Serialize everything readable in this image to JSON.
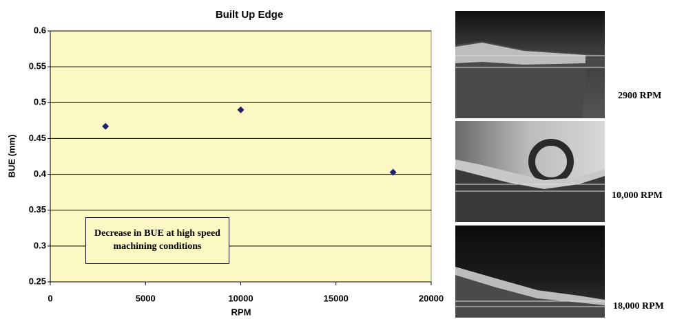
{
  "chart_data": {
    "type": "scatter",
    "title": "Built Up Edge",
    "x_label": "RPM",
    "y_label": "BUE (mm)",
    "x": [
      2900,
      10000,
      18000
    ],
    "values": [
      0.467,
      0.49,
      0.403
    ],
    "color": "#1f1f6e",
    "xlim": [
      0,
      20000
    ],
    "xticks": [
      0,
      5000,
      10000,
      15000,
      20000
    ],
    "ylim": [
      0.25,
      0.6
    ],
    "yticks": [
      0.25,
      0.3,
      0.35,
      0.4,
      0.45,
      0.5,
      0.55,
      0.6
    ],
    "grid": true,
    "annotation": "Decrease in BUE at high speed machining conditions"
  },
  "images": [
    {
      "label": "2900 RPM"
    },
    {
      "label": "10,000 RPM"
    },
    {
      "label": "18,000 RPM"
    }
  ]
}
